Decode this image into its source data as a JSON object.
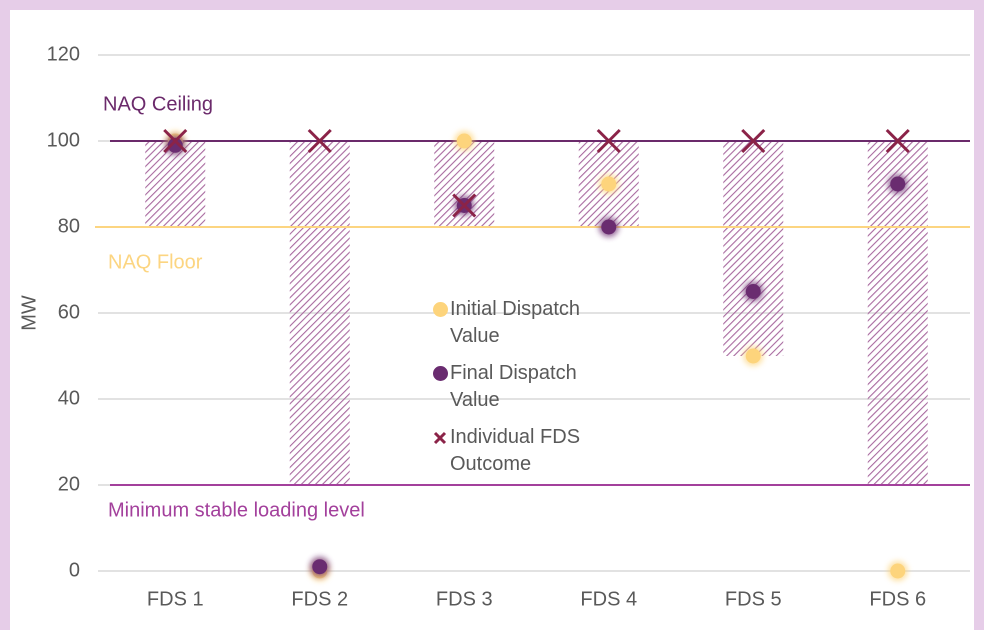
{
  "chart_data": {
    "type": "scatter",
    "y_label": "MW",
    "categories": [
      "FDS 1",
      "FDS 2",
      "FDS 3",
      "FDS 4",
      "FDS 5",
      "FDS 6"
    ],
    "range_low": [
      80,
      20,
      80,
      80,
      50,
      20
    ],
    "range_high": [
      100,
      100,
      100,
      100,
      100,
      100
    ],
    "range_color": "#a8699f",
    "series": [
      {
        "name": "Initial Dispatch Value",
        "color": "#fdd47c",
        "marker": "circle",
        "values": [
          100,
          0,
          100,
          90,
          50,
          0
        ]
      },
      {
        "name": "Final Dispatch Value",
        "color": "#6a2c70",
        "marker": "circle",
        "values": [
          99,
          1,
          85,
          80,
          65,
          90
        ]
      },
      {
        "name": "Individual FDS Outcome",
        "color": "#8b2348",
        "marker": "x",
        "values": [
          100,
          100,
          85,
          100,
          100,
          100
        ]
      }
    ],
    "reference_lines": [
      {
        "label": "NAQ Ceiling",
        "value": 100,
        "color": "#6b2a6b"
      },
      {
        "label": "NAQ Floor",
        "value": 80,
        "color": "#fcd581"
      },
      {
        "label": "Minimum stable loading level",
        "value": 20,
        "color": "#a3409c"
      }
    ],
    "ylim": [
      0,
      120
    ],
    "yticks": [
      0,
      20,
      40,
      60,
      80,
      100,
      120
    ],
    "grid": true,
    "legend": "center"
  }
}
